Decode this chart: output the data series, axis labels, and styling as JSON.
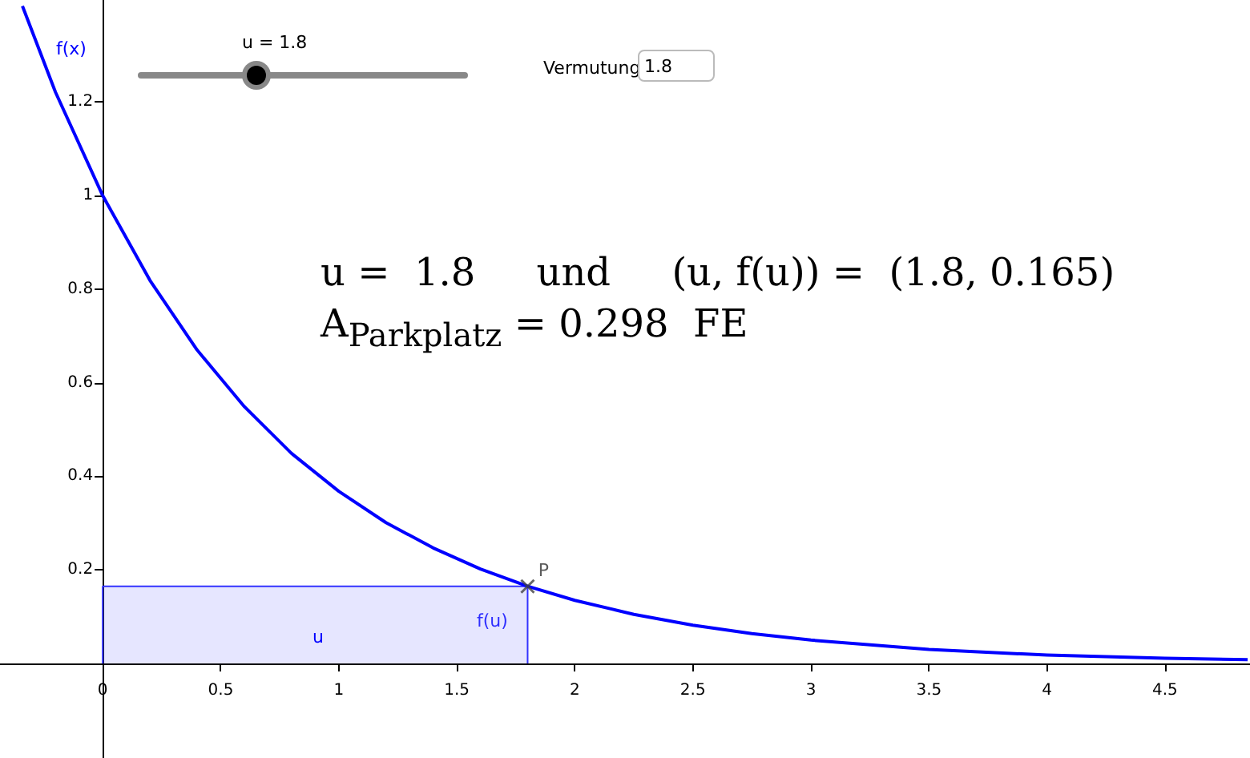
{
  "chart_data": {
    "type": "line",
    "ylabel": "f(x)",
    "xlim": [
      -0.435,
      4.86
    ],
    "ylim": [
      -0.202,
      1.418
    ],
    "xticks": [
      0,
      0.5,
      1,
      1.5,
      2,
      2.5,
      3,
      3.5,
      4,
      4.5
    ],
    "yticks": [
      0.2,
      0.4,
      0.6,
      0.8,
      1,
      1.2
    ],
    "grid": false,
    "series": [
      {
        "color": "#0000ff",
        "marker": "none",
        "x": [
          -0.34,
          -0.2,
          0,
          0.2,
          0.4,
          0.6,
          0.8,
          1,
          1.2,
          1.4,
          1.6,
          1.8,
          2,
          2.25,
          2.5,
          2.75,
          3,
          3.5,
          4,
          4.5,
          4.85
        ],
        "values": [
          1.405,
          1.221,
          1,
          0.819,
          0.67,
          0.549,
          0.449,
          0.368,
          0.301,
          0.247,
          0.202,
          0.165,
          0.135,
          0.105,
          0.082,
          0.064,
          0.05,
          0.03,
          0.018,
          0.011,
          0.008
        ]
      },
      {
        "type": "area",
        "color": "#3333ff",
        "marker": "none",
        "x": [
          0,
          0,
          1.8,
          1.8
        ],
        "values": [
          0,
          0.165,
          0.165,
          0
        ]
      },
      {
        "type": "scatter",
        "color": "#404040",
        "marker": "cross",
        "x": [
          1.8
        ],
        "values": [
          0.165
        ]
      }
    ],
    "annotations": [
      "u = 1.8",
      "Vermutung",
      "1.8",
      "u =  1.8     und     (u, f(u)) =  (1.8, 0.165)",
      "A$_{Parkplatz}$ = 0.298  FE",
      "u",
      {
        "text": "P",
        "x": 1.8,
        "y": 0.165
      },
      {
        "text": "f(u)",
        "x": 1.8,
        "y": 0.09
      }
    ]
  }
}
